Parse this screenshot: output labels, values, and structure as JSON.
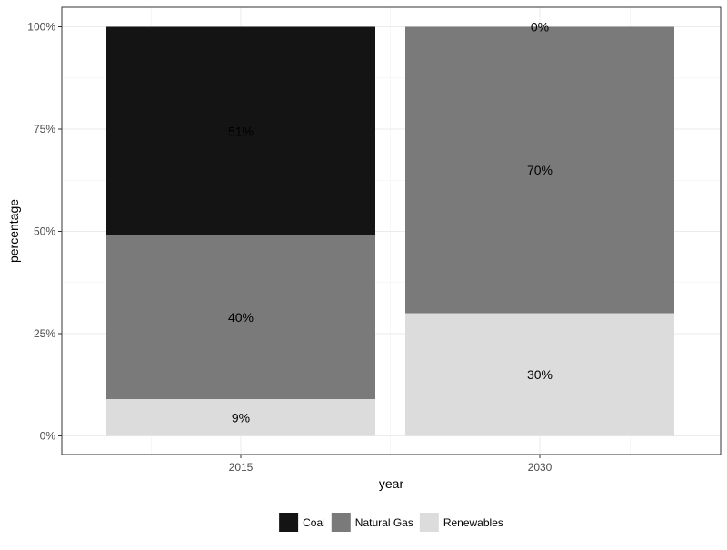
{
  "chart_data": {
    "type": "bar",
    "stacked": true,
    "categories": [
      "2015",
      "2030"
    ],
    "series": [
      {
        "name": "Coal",
        "values": [
          51,
          0
        ],
        "labels": [
          "51%",
          "0%"
        ],
        "color": "#141414"
      },
      {
        "name": "Natural Gas",
        "values": [
          40,
          70
        ],
        "labels": [
          "40%",
          "70%"
        ],
        "color": "#7a7a7a"
      },
      {
        "name": "Renewables",
        "values": [
          9,
          30
        ],
        "labels": [
          "9%",
          "30%"
        ],
        "color": "#dcdcdc"
      }
    ],
    "xlabel": "year",
    "ylabel": "percentage",
    "ylim": [
      0,
      100
    ],
    "yticks": [
      0,
      25,
      50,
      75,
      100
    ],
    "ytick_labels": [
      "0%",
      "25%",
      "50%",
      "75%",
      "100%"
    ],
    "grid": true,
    "legend_position": "bottom",
    "legend_entries": [
      "Coal",
      "Natural Gas",
      "Renewables"
    ]
  }
}
